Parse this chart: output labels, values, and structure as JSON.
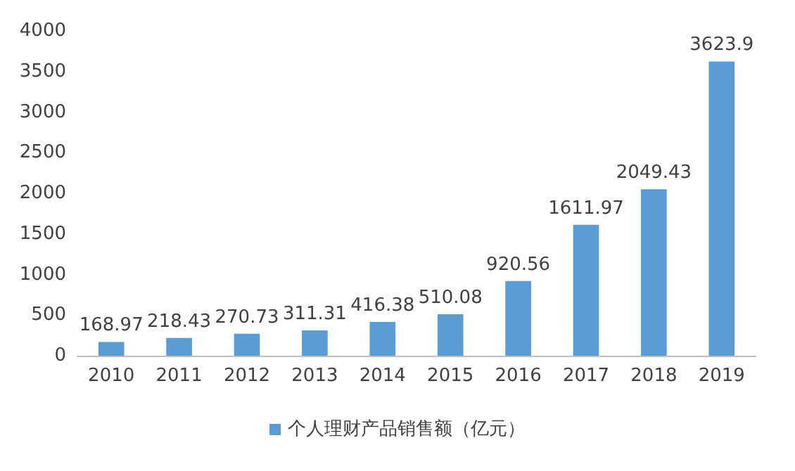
{
  "chart_data": {
    "type": "bar",
    "categories": [
      "2010",
      "2011",
      "2012",
      "2013",
      "2014",
      "2015",
      "2016",
      "2017",
      "2018",
      "2019"
    ],
    "series": [
      {
        "name": "个人理财产品销售额（亿元）",
        "color": "#5b9bd5",
        "values": [
          168.97,
          218.43,
          270.73,
          311.31,
          416.38,
          510.08,
          920.56,
          1611.97,
          2049.43,
          3623.9
        ]
      }
    ],
    "ylim": [
      0,
      4000
    ],
    "yticks": [
      0,
      500,
      1000,
      1500,
      2000,
      2500,
      3000,
      3500,
      4000
    ],
    "grid": false,
    "legend": "bottom",
    "data_labels": true
  }
}
